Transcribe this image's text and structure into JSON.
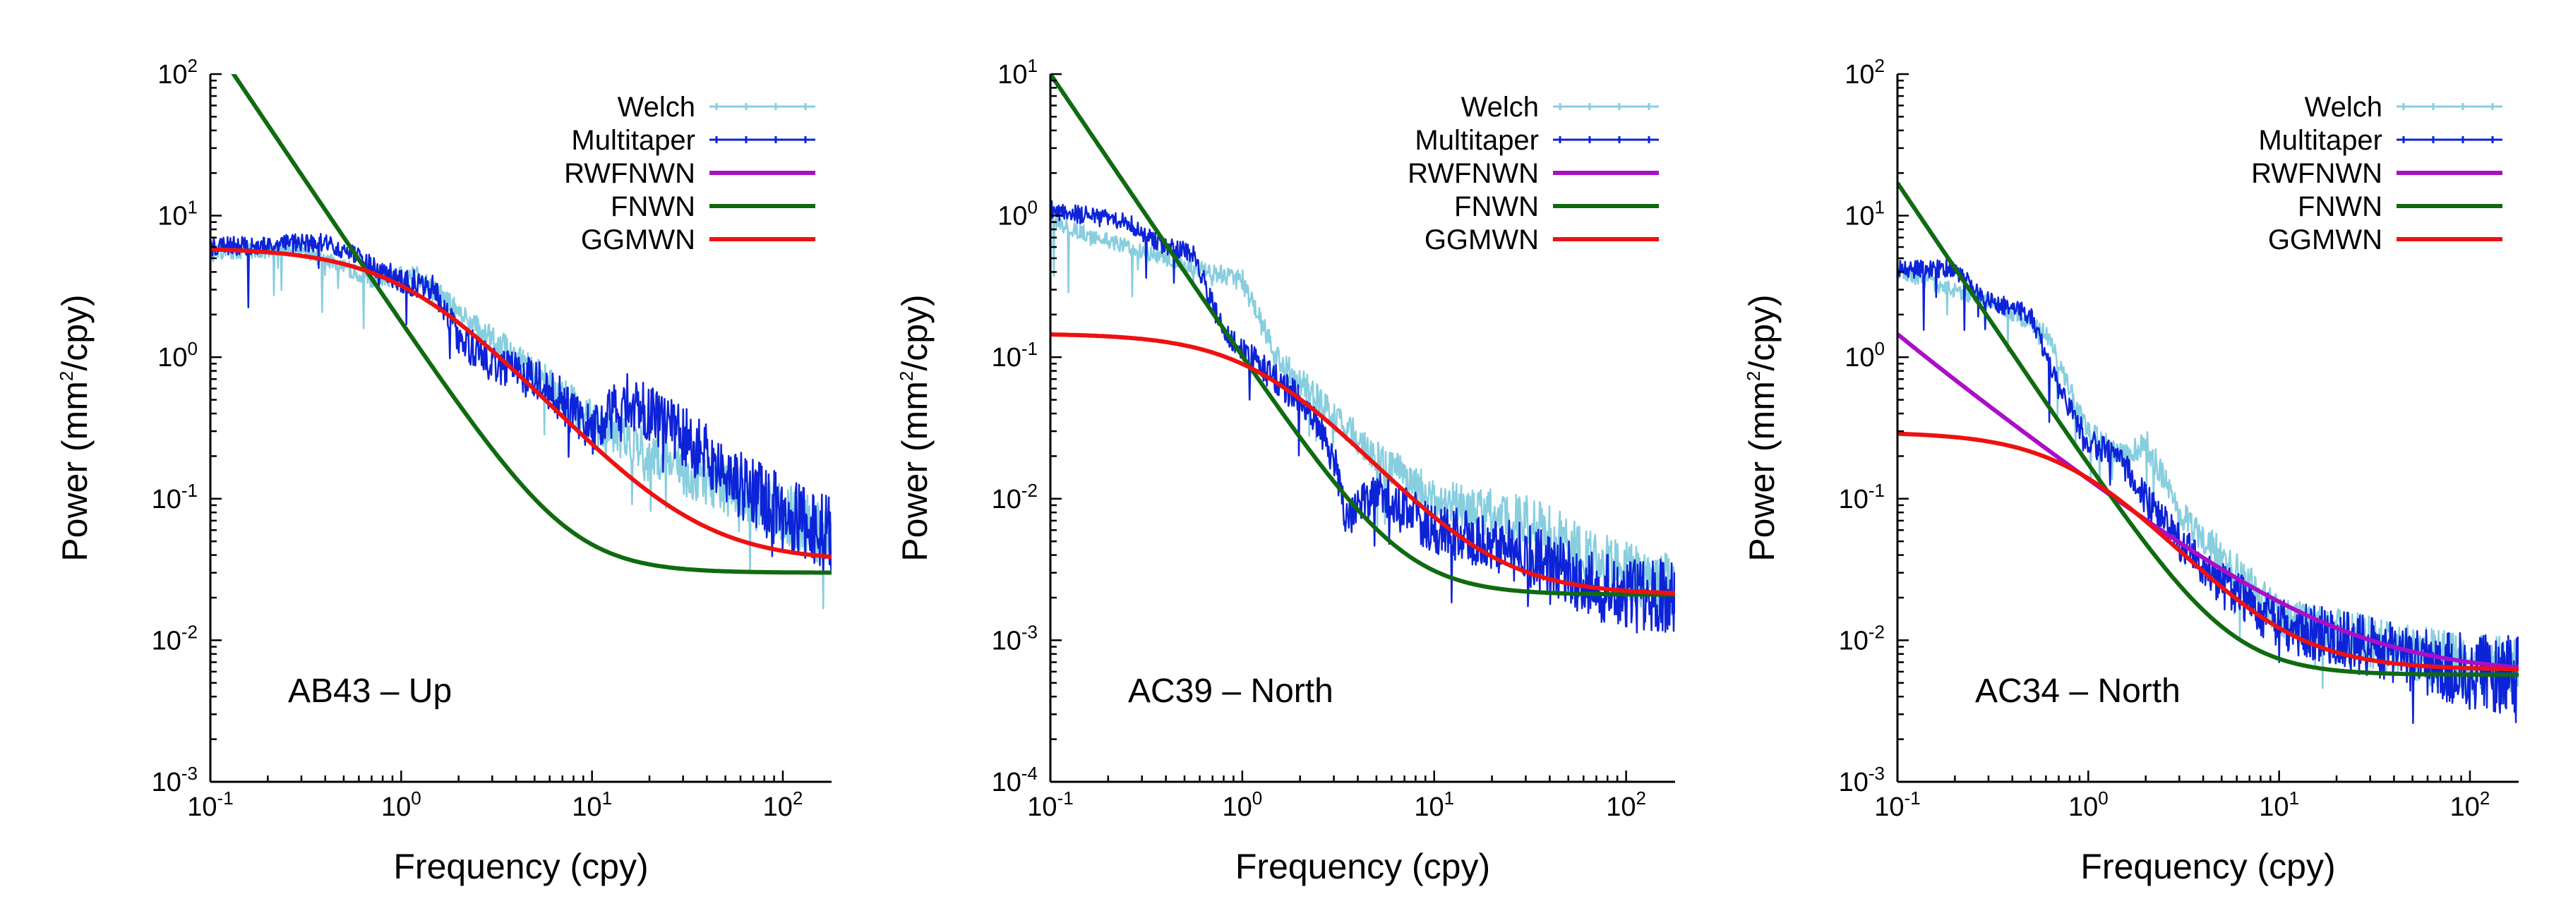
{
  "chart_data": [
    {
      "type": "line",
      "scale": "log-log",
      "label": "AB43 – Up",
      "xlabel": "Frequency (cpy)",
      "ylabel": {
        "prefix": "Power (mm",
        "sup": "2",
        "suffix": "/cpy)"
      },
      "xlim": [
        0.1,
        180
      ],
      "ylim": [
        0.001,
        100
      ],
      "x_ticks": [
        {
          "base": "10",
          "exp": "-1"
        },
        {
          "base": "10",
          "exp": "0"
        },
        {
          "base": "10",
          "exp": "1"
        },
        {
          "base": "10",
          "exp": "2"
        }
      ],
      "y_ticks": [
        {
          "base": "10",
          "exp": "-3"
        },
        {
          "base": "10",
          "exp": "-2"
        },
        {
          "base": "10",
          "exp": "-1"
        },
        {
          "base": "10",
          "exp": "0"
        },
        {
          "base": "10",
          "exp": "1"
        },
        {
          "base": "10",
          "exp": "2"
        }
      ],
      "legend": [
        "Welch",
        "Multitaper",
        "RWFNWN",
        "FNWN",
        "GGMWN"
      ],
      "series": [
        {
          "name": "Welch",
          "color": "#87cedf",
          "kind": "noisy",
          "anchors": [
            [
              0.1,
              5.5
            ],
            [
              0.3,
              5.8
            ],
            [
              0.7,
              3.6
            ],
            [
              1.2,
              3.8
            ],
            [
              2.0,
              2.0
            ],
            [
              4.0,
              1.0
            ],
            [
              10,
              0.35
            ],
            [
              30,
              0.16
            ],
            [
              100,
              0.08
            ],
            [
              180,
              0.05
            ]
          ],
          "noise": 0.18
        },
        {
          "name": "Multitaper",
          "color": "#0d23d8",
          "kind": "noisy",
          "anchors": [
            [
              0.1,
              6.0
            ],
            [
              0.4,
              6.5
            ],
            [
              0.6,
              5.0
            ],
            [
              1.0,
              3.5
            ],
            [
              1.5,
              3.0
            ],
            [
              2.0,
              1.4
            ],
            [
              3.0,
              0.9
            ],
            [
              5.0,
              0.7
            ],
            [
              7.0,
              0.5
            ],
            [
              10,
              0.3
            ],
            [
              15,
              0.5
            ],
            [
              25,
              0.35
            ],
            [
              50,
              0.15
            ],
            [
              100,
              0.08
            ],
            [
              180,
              0.055
            ]
          ],
          "noise": 0.22
        },
        {
          "name": "FNWN",
          "color": "#106b10",
          "kind": "powerlaw",
          "params": {
            "a": 1.75,
            "b": 0,
            "c": 0.03
          },
          "fmin": 0.1,
          "fmax": 180
        },
        {
          "name": "GGMWN",
          "color": "#ee1111",
          "kind": "ggm",
          "params": {
            "p0": 5.9,
            "f0": 1.1,
            "alpha": 1.5,
            "c": 0.036
          },
          "fmin": 0.1,
          "fmax": 180
        }
      ]
    },
    {
      "type": "line",
      "scale": "log-log",
      "label": "AC39 – North",
      "xlabel": "Frequency (cpy)",
      "ylabel": {
        "prefix": "Power (mm",
        "sup": "2",
        "suffix": "/cpy)"
      },
      "xlim": [
        0.1,
        180
      ],
      "ylim": [
        0.0001,
        10
      ],
      "x_ticks": [
        {
          "base": "10",
          "exp": "-1"
        },
        {
          "base": "10",
          "exp": "0"
        },
        {
          "base": "10",
          "exp": "1"
        },
        {
          "base": "10",
          "exp": "2"
        }
      ],
      "y_ticks": [
        {
          "base": "10",
          "exp": "-4"
        },
        {
          "base": "10",
          "exp": "-3"
        },
        {
          "base": "10",
          "exp": "-2"
        },
        {
          "base": "10",
          "exp": "-1"
        },
        {
          "base": "10",
          "exp": "0"
        },
        {
          "base": "10",
          "exp": "1"
        }
      ],
      "legend": [
        "Welch",
        "Multitaper",
        "RWFNWN",
        "FNWN",
        "GGMWN"
      ],
      "series": [
        {
          "name": "Welch",
          "color": "#87cedf",
          "kind": "noisy",
          "anchors": [
            [
              0.1,
              0.9
            ],
            [
              0.5,
              0.45
            ],
            [
              1.0,
              0.35
            ],
            [
              1.5,
              0.1
            ],
            [
              2.5,
              0.05
            ],
            [
              5,
              0.02
            ],
            [
              10,
              0.01
            ],
            [
              30,
              0.007
            ],
            [
              100,
              0.003
            ],
            [
              180,
              0.0025
            ]
          ],
          "noise": 0.18
        },
        {
          "name": "Multitaper",
          "color": "#0d23d8",
          "kind": "noisy",
          "anchors": [
            [
              0.1,
              1.1
            ],
            [
              0.25,
              0.9
            ],
            [
              0.4,
              0.6
            ],
            [
              0.55,
              0.55
            ],
            [
              0.8,
              0.15
            ],
            [
              1.2,
              0.09
            ],
            [
              2.0,
              0.05
            ],
            [
              3.0,
              0.02
            ],
            [
              3.5,
              0.007
            ],
            [
              5,
              0.012
            ],
            [
              10,
              0.006
            ],
            [
              20,
              0.005
            ],
            [
              50,
              0.003
            ],
            [
              100,
              0.002
            ],
            [
              180,
              0.0022
            ]
          ],
          "noise": 0.22
        },
        {
          "name": "FNWN",
          "color": "#106b10",
          "kind": "powerlaw",
          "params": {
            "a": 0.1,
            "b": 0,
            "c": 0.0021
          },
          "fmin": 0.1,
          "fmax": 180
        },
        {
          "name": "GGMWN",
          "color": "#ee1111",
          "kind": "ggm",
          "params": {
            "p0": 0.145,
            "f0": 1.3,
            "alpha": 1.6,
            "c": 0.0021
          },
          "fmin": 0.1,
          "fmax": 180
        }
      ]
    },
    {
      "type": "line",
      "scale": "log-log",
      "label": "AC34 – North",
      "xlabel": "Frequency (cpy)",
      "ylabel": {
        "prefix": "Power (mm",
        "sup": "2",
        "suffix": "/cpy)"
      },
      "xlim": [
        0.1,
        180
      ],
      "ylim": [
        0.001,
        100
      ],
      "x_ticks": [
        {
          "base": "10",
          "exp": "-1"
        },
        {
          "base": "10",
          "exp": "0"
        },
        {
          "base": "10",
          "exp": "1"
        },
        {
          "base": "10",
          "exp": "2"
        }
      ],
      "y_ticks": [
        {
          "base": "10",
          "exp": "-3"
        },
        {
          "base": "10",
          "exp": "-2"
        },
        {
          "base": "10",
          "exp": "-1"
        },
        {
          "base": "10",
          "exp": "0"
        },
        {
          "base": "10",
          "exp": "1"
        },
        {
          "base": "10",
          "exp": "2"
        }
      ],
      "legend": [
        "Welch",
        "Multitaper",
        "RWFNWN",
        "FNWN",
        "GGMWN"
      ],
      "series": [
        {
          "name": "Welch",
          "color": "#87cedf",
          "kind": "noisy",
          "anchors": [
            [
              0.1,
              4.0
            ],
            [
              0.3,
              2.5
            ],
            [
              0.6,
              1.5
            ],
            [
              1.0,
              0.3
            ],
            [
              1.5,
              0.2
            ],
            [
              2.0,
              0.25
            ],
            [
              3.0,
              0.08
            ],
            [
              10,
              0.015
            ],
            [
              50,
              0.008
            ],
            [
              180,
              0.006
            ]
          ],
          "noise": 0.18
        },
        {
          "name": "Multitaper",
          "color": "#0d23d8",
          "kind": "noisy",
          "anchors": [
            [
              0.1,
              4.2
            ],
            [
              0.2,
              4.2
            ],
            [
              0.3,
              2.5
            ],
            [
              0.5,
              2.0
            ],
            [
              0.7,
              0.6
            ],
            [
              1.0,
              0.25
            ],
            [
              1.4,
              0.2
            ],
            [
              2.0,
              0.1
            ],
            [
              3.0,
              0.05
            ],
            [
              5,
              0.025
            ],
            [
              10,
              0.013
            ],
            [
              30,
              0.009
            ],
            [
              100,
              0.006
            ],
            [
              180,
              0.0055
            ]
          ],
          "noise": 0.22
        },
        {
          "name": "RWFNWN",
          "color": "#aa0fc7",
          "kind": "powerlaw",
          "params": {
            "a": 0.0015,
            "b": 0.13,
            "c": 0.0057
          },
          "fmin": 0.1,
          "fmax": 180
        },
        {
          "name": "FNWN",
          "color": "#106b10",
          "kind": "powerlaw",
          "params": {
            "a": 0.17,
            "b": 0,
            "c": 0.0057
          },
          "fmin": 0.1,
          "fmax": 180
        },
        {
          "name": "GGMWN",
          "color": "#ee1111",
          "kind": "ggm",
          "params": {
            "p0": 0.29,
            "f0": 0.9,
            "alpha": 1.6,
            "c": 0.0062
          },
          "fmin": 0.1,
          "fmax": 180
        }
      ]
    }
  ]
}
